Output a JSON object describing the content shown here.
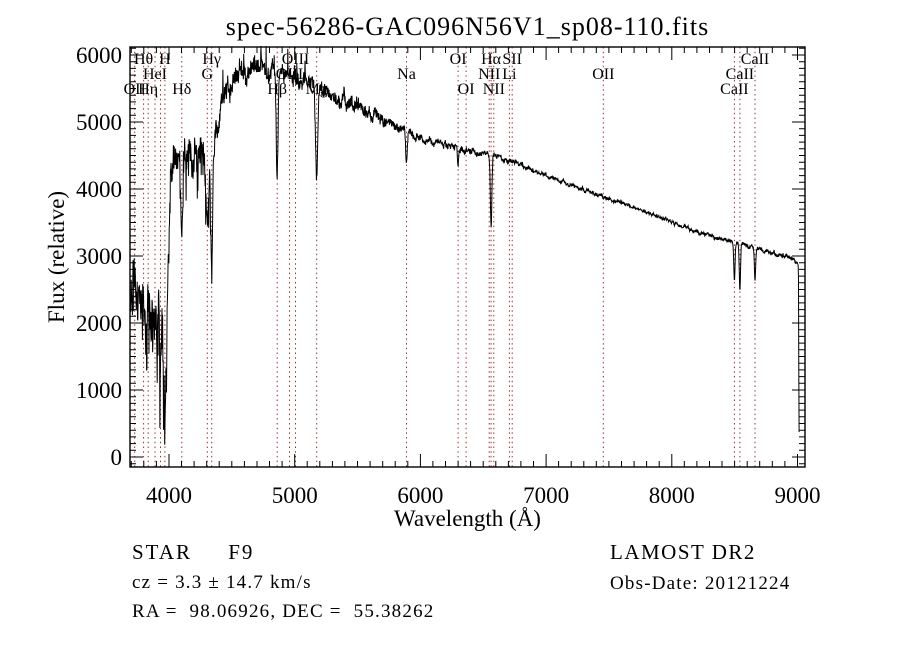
{
  "title": "spec-56286-GAC096N56V1_sp08-110.fits",
  "annotations": {
    "class_line": "STAR     F9",
    "cz_line": "cz = 3.3 ± 14.7 km/s",
    "radec_line": "RA =  98.06926, DEC =  55.38262",
    "survey_line": "LAMOST DR2",
    "obsdate_line": "Obs-Date: 20121224"
  },
  "chart_data": {
    "type": "line",
    "title": "spec-56286-GAC096N56V1_sp08-110.fits",
    "xlabel": "Wavelength (Å)",
    "ylabel": "Flux (relative)",
    "xlim": [
      3690,
      9060
    ],
    "ylim": [
      -150,
      6120
    ],
    "x_ticks": [
      4000,
      5000,
      6000,
      7000,
      8000,
      9000
    ],
    "y_ticks": [
      0,
      1000,
      2000,
      3000,
      4000,
      5000,
      6000
    ],
    "x_minor_step": 100,
    "y_minor_step": 100,
    "grid": false,
    "line_color": "#000000",
    "marker_line_color": "#993333",
    "spectral_lines": [
      {
        "label": "Hθ",
        "wavelength": 3798,
        "row": 1
      },
      {
        "label": "H",
        "wavelength": 3968,
        "row": 1
      },
      {
        "label": "",
        "wavelength": 3933,
        "row": 1
      },
      {
        "label": "Hγ",
        "wavelength": 4340,
        "row": 1
      },
      {
        "label": "OIII",
        "wavelength": 5007,
        "row": 1
      },
      {
        "label": "OI",
        "wavelength": 6300,
        "row": 1
      },
      {
        "label": "Hα",
        "wavelength": 6563,
        "row": 1
      },
      {
        "label": "SII",
        "wavelength": 6731,
        "row": 1
      },
      {
        "label": "CaII",
        "wavelength": 8662,
        "row": 1
      },
      {
        "label": "HeI",
        "wavelength": 3889,
        "row": 2
      },
      {
        "label": "G",
        "wavelength": 4305,
        "row": 2
      },
      {
        "label": "OIII",
        "wavelength": 4959,
        "row": 2
      },
      {
        "label": "Na",
        "wavelength": 5890,
        "row": 2
      },
      {
        "label": "NII",
        "wavelength": 6548,
        "row": 2
      },
      {
        "label": "Li",
        "wavelength": 6708,
        "row": 2
      },
      {
        "label": "OII",
        "wavelength": 7455,
        "row": 2
      },
      {
        "label": "CaII",
        "wavelength": 8542,
        "row": 2
      },
      {
        "label": "OII",
        "wavelength": 3727,
        "row": 3
      },
      {
        "label": "Hη",
        "wavelength": 3835,
        "row": 3
      },
      {
        "label": "Hδ",
        "wavelength": 4102,
        "row": 3
      },
      {
        "label": "Hβ",
        "wavelength": 4861,
        "row": 3
      },
      {
        "label": "Mg",
        "wavelength": 5175,
        "row": 3
      },
      {
        "label": "OI",
        "wavelength": 6364,
        "row": 3
      },
      {
        "label": "NII",
        "wavelength": 6584,
        "row": 3
      },
      {
        "label": "CaII",
        "wavelength": 8498,
        "row": 3
      }
    ],
    "spectrum": {
      "continuum": [
        [
          3690,
          2700
        ],
        [
          3740,
          2450
        ],
        [
          3790,
          2250
        ],
        [
          3840,
          2300
        ],
        [
          3890,
          2050
        ],
        [
          3930,
          1950
        ],
        [
          3965,
          1850
        ],
        [
          3985,
          2100
        ],
        [
          4000,
          3400
        ],
        [
          4015,
          4300
        ],
        [
          4060,
          4420
        ],
        [
          4110,
          4450
        ],
        [
          4160,
          4600
        ],
        [
          4210,
          4550
        ],
        [
          4260,
          4480
        ],
        [
          4310,
          4350
        ],
        [
          4360,
          4750
        ],
        [
          4420,
          5250
        ],
        [
          4480,
          5500
        ],
        [
          4560,
          5650
        ],
        [
          4660,
          5780
        ],
        [
          4760,
          5820
        ],
        [
          4860,
          5720
        ],
        [
          4960,
          5670
        ],
        [
          5060,
          5620
        ],
        [
          5160,
          5520
        ],
        [
          5260,
          5470
        ],
        [
          5360,
          5370
        ],
        [
          5460,
          5270
        ],
        [
          5560,
          5170
        ],
        [
          5660,
          5070
        ],
        [
          5760,
          4970
        ],
        [
          5860,
          4870
        ],
        [
          5960,
          4770
        ],
        [
          6060,
          4720
        ],
        [
          6160,
          4670
        ],
        [
          6260,
          4620
        ],
        [
          6360,
          4570
        ],
        [
          6460,
          4540
        ],
        [
          6560,
          4510
        ],
        [
          6660,
          4450
        ],
        [
          6760,
          4400
        ],
        [
          6860,
          4310
        ],
        [
          6960,
          4230
        ],
        [
          7060,
          4160
        ],
        [
          7160,
          4090
        ],
        [
          7260,
          4020
        ],
        [
          7360,
          3950
        ],
        [
          7460,
          3880
        ],
        [
          7560,
          3810
        ],
        [
          7660,
          3750
        ],
        [
          7760,
          3680
        ],
        [
          7860,
          3610
        ],
        [
          7960,
          3540
        ],
        [
          8060,
          3460
        ],
        [
          8160,
          3390
        ],
        [
          8260,
          3330
        ],
        [
          8360,
          3270
        ],
        [
          8460,
          3220
        ],
        [
          8560,
          3170
        ],
        [
          8660,
          3120
        ],
        [
          8760,
          3070
        ],
        [
          8860,
          3020
        ],
        [
          8960,
          2960
        ],
        [
          9000,
          2900
        ],
        [
          9008,
          2850
        ],
        [
          9012,
          600
        ],
        [
          9015,
          30
        ]
      ],
      "noise_amplitude": [
        [
          3690,
          520
        ],
        [
          3800,
          560
        ],
        [
          3900,
          640
        ],
        [
          3975,
          560
        ],
        [
          4000,
          420
        ],
        [
          4040,
          360
        ],
        [
          4150,
          380
        ],
        [
          4300,
          360
        ],
        [
          4400,
          270
        ],
        [
          4500,
          260
        ],
        [
          4700,
          210
        ],
        [
          4900,
          190
        ],
        [
          5100,
          170
        ],
        [
          5300,
          170
        ],
        [
          5500,
          175
        ],
        [
          5700,
          140
        ],
        [
          5850,
          110
        ],
        [
          6000,
          85
        ],
        [
          6200,
          75
        ],
        [
          6400,
          70
        ],
        [
          6600,
          60
        ],
        [
          6900,
          50
        ],
        [
          7200,
          45
        ],
        [
          7600,
          42
        ],
        [
          8000,
          40
        ],
        [
          8400,
          42
        ],
        [
          8700,
          45
        ],
        [
          9000,
          55
        ],
        [
          9015,
          40
        ]
      ],
      "absorption_features": [
        {
          "wavelength": 3933,
          "min_flux": 1450,
          "sigma": 7
        },
        {
          "wavelength": 3968,
          "min_flux": 600,
          "sigma": 6
        },
        {
          "wavelength": 4102,
          "min_flux": 3250,
          "sigma": 7
        },
        {
          "wavelength": 4305,
          "min_flux": 3550,
          "sigma": 10
        },
        {
          "wavelength": 4340,
          "min_flux": 2620,
          "sigma": 6
        },
        {
          "wavelength": 4861,
          "min_flux": 4220,
          "sigma": 7
        },
        {
          "wavelength": 5175,
          "min_flux": 4180,
          "sigma": 9
        },
        {
          "wavelength": 5890,
          "min_flux": 4380,
          "sigma": 6
        },
        {
          "wavelength": 6300,
          "min_flux": 4330,
          "sigma": 4
        },
        {
          "wavelength": 6563,
          "min_flux": 3430,
          "sigma": 6
        },
        {
          "wavelength": 8498,
          "min_flux": 2620,
          "sigma": 5
        },
        {
          "wavelength": 8542,
          "min_flux": 2480,
          "sigma": 5
        },
        {
          "wavelength": 8662,
          "min_flux": 2640,
          "sigma": 5
        }
      ]
    }
  }
}
